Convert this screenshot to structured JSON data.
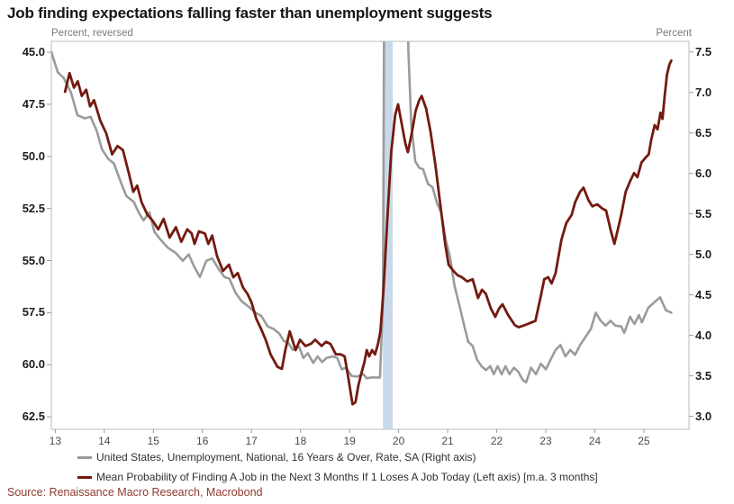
{
  "header": {
    "title": "Job finding expectations falling faster than unemployment suggests"
  },
  "source": {
    "label": "Source: Renaissance Macro Research, Macrobond"
  },
  "legend": [
    {
      "id": "unemployment-legend",
      "label": "United States, Unemployment, National, 16 Years & Over, Rate, SA (Right axis)",
      "color": "#9b9b9b"
    },
    {
      "id": "job-finding-legend",
      "label": "Mean Probability of Finding A Job in the Next 3 Months If 1 Loses A Job Today (Left axis) [m.a. 3 months]",
      "color": "#731a10"
    }
  ],
  "chart_data": {
    "type": "line",
    "title": "Job finding expectations falling faster than unemployment suggests",
    "xlabel": "",
    "legend_position": "bottom-left",
    "grid": false,
    "frame_color": "#c6c6c6",
    "x_axis": {
      "xlim": [
        2013.42,
        2026.42
      ],
      "tick_years": [
        2013.5,
        2014.5,
        2015.5,
        2016.5,
        2017.5,
        2018.5,
        2019.5,
        2020.5,
        2021.5,
        2022.5,
        2023.5,
        2024.5,
        2025.5
      ],
      "tick_labels": [
        "13",
        "14",
        "15",
        "16",
        "17",
        "18",
        "19",
        "20",
        "21",
        "22",
        "23",
        "24",
        "25"
      ]
    },
    "left_axis": {
      "label": "Percent, reversed",
      "reversed": true,
      "lim": [
        44.48,
        63.1
      ],
      "ticks": [
        45.0,
        47.5,
        50.0,
        52.5,
        55.0,
        57.5,
        60.0,
        62.5
      ],
      "tick_labels": [
        "45.0",
        "47.5",
        "50.0",
        "52.5",
        "55.0",
        "57.5",
        "60.0",
        "62.5"
      ]
    },
    "right_axis": {
      "label": "Percent",
      "reversed": false,
      "lim": [
        2.84,
        7.63
      ],
      "ticks": [
        7.5,
        7.0,
        6.5,
        6.0,
        5.5,
        5.0,
        4.5,
        4.0,
        3.5,
        3.0
      ],
      "tick_labels": [
        "7.5",
        "7.0",
        "6.5",
        "6.0",
        "5.5",
        "5.0",
        "4.5",
        "4.0",
        "3.5",
        "3.0"
      ]
    },
    "recession_band": {
      "from": 2020.18,
      "to": 2020.38,
      "color": "#c9d9e9"
    },
    "series": [
      {
        "id": "unemployment-line",
        "name": "United States, Unemployment, National, 16 Years & Over, Rate, SA (Right axis)",
        "axis": "right",
        "color": "#9b9b9b",
        "width": 2.6,
        "points": [
          [
            2013.42,
            7.5
          ],
          [
            2013.55,
            7.25
          ],
          [
            2013.67,
            7.18
          ],
          [
            2013.82,
            7.0
          ],
          [
            2013.95,
            6.72
          ],
          [
            2014.1,
            6.68
          ],
          [
            2014.22,
            6.7
          ],
          [
            2014.35,
            6.52
          ],
          [
            2014.45,
            6.3
          ],
          [
            2014.58,
            6.18
          ],
          [
            2014.7,
            6.12
          ],
          [
            2014.82,
            5.92
          ],
          [
            2014.95,
            5.72
          ],
          [
            2015.1,
            5.65
          ],
          [
            2015.2,
            5.52
          ],
          [
            2015.3,
            5.42
          ],
          [
            2015.42,
            5.52
          ],
          [
            2015.52,
            5.28
          ],
          [
            2015.65,
            5.18
          ],
          [
            2015.8,
            5.08
          ],
          [
            2015.95,
            5.02
          ],
          [
            2016.1,
            4.92
          ],
          [
            2016.22,
            5.0
          ],
          [
            2016.33,
            4.85
          ],
          [
            2016.45,
            4.72
          ],
          [
            2016.58,
            4.92
          ],
          [
            2016.7,
            4.95
          ],
          [
            2016.83,
            4.82
          ],
          [
            2016.95,
            4.72
          ],
          [
            2017.05,
            4.7
          ],
          [
            2017.18,
            4.52
          ],
          [
            2017.3,
            4.42
          ],
          [
            2017.45,
            4.35
          ],
          [
            2017.58,
            4.28
          ],
          [
            2017.7,
            4.24
          ],
          [
            2017.83,
            4.11
          ],
          [
            2017.95,
            4.08
          ],
          [
            2018.07,
            4.02
          ],
          [
            2018.16,
            3.93
          ],
          [
            2018.25,
            3.91
          ],
          [
            2018.34,
            3.82
          ],
          [
            2018.47,
            3.86
          ],
          [
            2018.56,
            3.72
          ],
          [
            2018.65,
            3.78
          ],
          [
            2018.76,
            3.66
          ],
          [
            2018.85,
            3.74
          ],
          [
            2018.94,
            3.67
          ],
          [
            2019.03,
            3.72
          ],
          [
            2019.16,
            3.74
          ],
          [
            2019.25,
            3.72
          ],
          [
            2019.34,
            3.58
          ],
          [
            2019.43,
            3.6
          ],
          [
            2019.54,
            3.5
          ],
          [
            2019.65,
            3.49
          ],
          [
            2019.78,
            3.52
          ],
          [
            2019.85,
            3.47
          ],
          [
            2019.95,
            3.48
          ],
          [
            2020.05,
            3.48
          ],
          [
            2020.12,
            3.48
          ],
          [
            2020.18,
            4.4
          ],
          [
            2020.25,
            14.7
          ],
          [
            2020.45,
            13.0
          ],
          [
            2020.6,
            10.5
          ],
          [
            2020.7,
            7.5
          ],
          [
            2020.76,
            6.6
          ],
          [
            2020.84,
            6.15
          ],
          [
            2020.92,
            6.07
          ],
          [
            2021.0,
            6.05
          ],
          [
            2021.1,
            5.87
          ],
          [
            2021.19,
            5.83
          ],
          [
            2021.28,
            5.64
          ],
          [
            2021.37,
            5.51
          ],
          [
            2021.46,
            5.18
          ],
          [
            2021.55,
            4.96
          ],
          [
            2021.64,
            4.61
          ],
          [
            2021.74,
            4.37
          ],
          [
            2021.83,
            4.14
          ],
          [
            2021.92,
            3.92
          ],
          [
            2022.01,
            3.87
          ],
          [
            2022.1,
            3.7
          ],
          [
            2022.19,
            3.62
          ],
          [
            2022.28,
            3.57
          ],
          [
            2022.37,
            3.62
          ],
          [
            2022.44,
            3.52
          ],
          [
            2022.52,
            3.62
          ],
          [
            2022.6,
            3.52
          ],
          [
            2022.68,
            3.62
          ],
          [
            2022.76,
            3.52
          ],
          [
            2022.85,
            3.6
          ],
          [
            2022.94,
            3.55
          ],
          [
            2023.03,
            3.45
          ],
          [
            2023.1,
            3.42
          ],
          [
            2023.2,
            3.6
          ],
          [
            2023.3,
            3.52
          ],
          [
            2023.4,
            3.65
          ],
          [
            2023.5,
            3.58
          ],
          [
            2023.6,
            3.7
          ],
          [
            2023.7,
            3.82
          ],
          [
            2023.8,
            3.88
          ],
          [
            2023.9,
            3.74
          ],
          [
            2024.0,
            3.82
          ],
          [
            2024.1,
            3.76
          ],
          [
            2024.2,
            3.88
          ],
          [
            2024.3,
            3.97
          ],
          [
            2024.42,
            4.08
          ],
          [
            2024.52,
            4.28
          ],
          [
            2024.62,
            4.18
          ],
          [
            2024.72,
            4.12
          ],
          [
            2024.82,
            4.18
          ],
          [
            2024.92,
            4.12
          ],
          [
            2025.04,
            4.11
          ],
          [
            2025.1,
            4.03
          ],
          [
            2025.22,
            4.23
          ],
          [
            2025.31,
            4.14
          ],
          [
            2025.4,
            4.25
          ],
          [
            2025.46,
            4.16
          ],
          [
            2025.59,
            4.34
          ],
          [
            2025.68,
            4.39
          ],
          [
            2025.83,
            4.47
          ],
          [
            2025.95,
            4.31
          ],
          [
            2026.06,
            4.28
          ]
        ]
      },
      {
        "id": "job-finding-line",
        "name": "Mean Probability of Finding A Job in the Next 3 Months If 1 Loses A Job Today (Left axis) [m.a. 3 months]",
        "axis": "left",
        "color": "#731a10",
        "width": 2.8,
        "points": [
          [
            2013.7,
            46.9
          ],
          [
            2013.79,
            46.0
          ],
          [
            2013.88,
            46.7
          ],
          [
            2013.96,
            46.4
          ],
          [
            2014.04,
            47.1
          ],
          [
            2014.13,
            46.8
          ],
          [
            2014.21,
            47.6
          ],
          [
            2014.29,
            47.3
          ],
          [
            2014.42,
            48.3
          ],
          [
            2014.54,
            48.9
          ],
          [
            2014.66,
            49.9
          ],
          [
            2014.77,
            49.5
          ],
          [
            2014.88,
            49.7
          ],
          [
            2015.0,
            50.8
          ],
          [
            2015.09,
            51.7
          ],
          [
            2015.17,
            51.4
          ],
          [
            2015.26,
            52.2
          ],
          [
            2015.38,
            52.8
          ],
          [
            2015.49,
            53.1
          ],
          [
            2015.6,
            53.5
          ],
          [
            2015.71,
            53.0
          ],
          [
            2015.83,
            53.9
          ],
          [
            2015.96,
            53.4
          ],
          [
            2016.07,
            54.1
          ],
          [
            2016.19,
            53.5
          ],
          [
            2016.28,
            53.7
          ],
          [
            2016.34,
            54.2
          ],
          [
            2016.43,
            53.6
          ],
          [
            2016.55,
            53.7
          ],
          [
            2016.62,
            54.2
          ],
          [
            2016.7,
            53.8
          ],
          [
            2016.8,
            54.8
          ],
          [
            2016.92,
            55.5
          ],
          [
            2017.04,
            55.2
          ],
          [
            2017.13,
            55.8
          ],
          [
            2017.22,
            55.6
          ],
          [
            2017.33,
            56.3
          ],
          [
            2017.42,
            56.6
          ],
          [
            2017.5,
            57.0
          ],
          [
            2017.6,
            57.8
          ],
          [
            2017.7,
            58.3
          ],
          [
            2017.79,
            58.8
          ],
          [
            2017.89,
            59.5
          ],
          [
            2018.03,
            60.1
          ],
          [
            2018.12,
            60.2
          ],
          [
            2018.19,
            59.3
          ],
          [
            2018.28,
            58.4
          ],
          [
            2018.4,
            59.3
          ],
          [
            2018.49,
            58.8
          ],
          [
            2018.6,
            59.1
          ],
          [
            2018.71,
            59.0
          ],
          [
            2018.8,
            58.8
          ],
          [
            2018.93,
            59.1
          ],
          [
            2019.02,
            58.9
          ],
          [
            2019.11,
            59.0
          ],
          [
            2019.22,
            59.5
          ],
          [
            2019.32,
            59.5
          ],
          [
            2019.4,
            59.6
          ],
          [
            2019.48,
            60.7
          ],
          [
            2019.56,
            61.9
          ],
          [
            2019.62,
            61.8
          ],
          [
            2019.68,
            61.0
          ],
          [
            2019.73,
            60.5
          ],
          [
            2019.8,
            59.9
          ],
          [
            2019.85,
            59.3
          ],
          [
            2019.9,
            59.6
          ],
          [
            2019.96,
            59.3
          ],
          [
            2020.02,
            59.5
          ],
          [
            2020.08,
            59.0
          ],
          [
            2020.13,
            58.4
          ],
          [
            2020.19,
            56.5
          ],
          [
            2020.27,
            53.0
          ],
          [
            2020.35,
            49.8
          ],
          [
            2020.43,
            48.0
          ],
          [
            2020.49,
            47.5
          ],
          [
            2020.56,
            48.4
          ],
          [
            2020.64,
            49.4
          ],
          [
            2020.69,
            49.8
          ],
          [
            2020.76,
            49.0
          ],
          [
            2020.85,
            47.8
          ],
          [
            2020.92,
            47.3
          ],
          [
            2020.97,
            47.1
          ],
          [
            2021.06,
            47.7
          ],
          [
            2021.15,
            48.8
          ],
          [
            2021.25,
            50.4
          ],
          [
            2021.35,
            52.3
          ],
          [
            2021.45,
            54.2
          ],
          [
            2021.52,
            55.2
          ],
          [
            2021.62,
            55.5
          ],
          [
            2021.7,
            55.7
          ],
          [
            2021.79,
            55.8
          ],
          [
            2021.9,
            56.0
          ],
          [
            2022.01,
            55.9
          ],
          [
            2022.12,
            56.8
          ],
          [
            2022.2,
            56.4
          ],
          [
            2022.28,
            56.6
          ],
          [
            2022.38,
            57.3
          ],
          [
            2022.47,
            57.7
          ],
          [
            2022.55,
            57.3
          ],
          [
            2022.62,
            57.1
          ],
          [
            2022.73,
            57.6
          ],
          [
            2022.87,
            58.1
          ],
          [
            2022.95,
            58.2
          ],
          [
            2023.07,
            58.1
          ],
          [
            2023.18,
            58.0
          ],
          [
            2023.29,
            57.9
          ],
          [
            2023.4,
            56.7
          ],
          [
            2023.47,
            55.9
          ],
          [
            2023.55,
            55.8
          ],
          [
            2023.62,
            56.1
          ],
          [
            2023.7,
            55.6
          ],
          [
            2023.82,
            54.0
          ],
          [
            2023.92,
            53.2
          ],
          [
            2024.03,
            52.8
          ],
          [
            2024.1,
            52.2
          ],
          [
            2024.2,
            51.7
          ],
          [
            2024.27,
            51.5
          ],
          [
            2024.37,
            52.1
          ],
          [
            2024.45,
            52.4
          ],
          [
            2024.55,
            52.3
          ],
          [
            2024.65,
            52.5
          ],
          [
            2024.73,
            52.6
          ],
          [
            2024.83,
            53.6
          ],
          [
            2024.9,
            54.2
          ],
          [
            2025.0,
            53.2
          ],
          [
            2025.04,
            52.8
          ],
          [
            2025.13,
            51.7
          ],
          [
            2025.22,
            51.2
          ],
          [
            2025.3,
            50.8
          ],
          [
            2025.37,
            51.0
          ],
          [
            2025.45,
            50.3
          ],
          [
            2025.52,
            50.1
          ],
          [
            2025.6,
            49.9
          ],
          [
            2025.65,
            49.2
          ],
          [
            2025.72,
            48.5
          ],
          [
            2025.78,
            48.7
          ],
          [
            2025.84,
            47.9
          ],
          [
            2025.88,
            48.2
          ],
          [
            2025.92,
            47.2
          ],
          [
            2025.97,
            46.1
          ],
          [
            2026.02,
            45.6
          ],
          [
            2026.06,
            45.4
          ]
        ]
      }
    ]
  }
}
